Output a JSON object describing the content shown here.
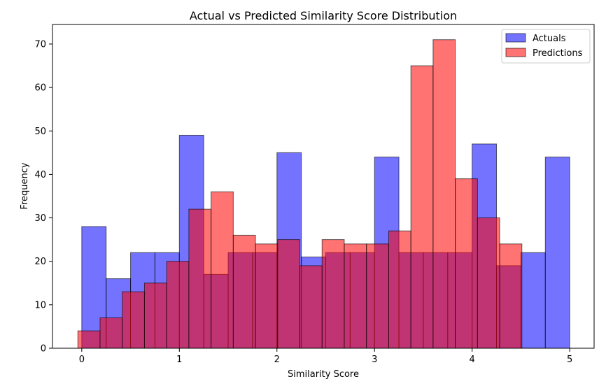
{
  "chart_data": {
    "type": "bar",
    "title": "Actual vs Predicted Similarity Score Distribution",
    "xlabel": "Similarity Score",
    "ylabel": "Frequency",
    "xlim": [
      -0.3,
      5.25
    ],
    "ylim": [
      0,
      74.5
    ],
    "xticks": [
      0,
      1,
      2,
      3,
      4,
      5
    ],
    "yticks": [
      0,
      10,
      20,
      30,
      40,
      50,
      60,
      70
    ],
    "grid": false,
    "legend_position": "top-right",
    "colors": {
      "actuals": "#0000ff",
      "predictions": "#ff0000",
      "edge": "#000000"
    },
    "series": [
      {
        "name": "Actuals",
        "bin_start": 0.0,
        "bin_width": 0.25,
        "values": [
          28,
          16,
          22,
          22,
          49,
          17,
          22,
          22,
          45,
          21,
          22,
          22,
          44,
          22,
          22,
          22,
          47,
          19,
          22,
          44
        ]
      },
      {
        "name": "Predictions",
        "bin_start": -0.04,
        "bin_width": 0.2275,
        "values": [
          4,
          7,
          13,
          15,
          20,
          32,
          36,
          26,
          24,
          25,
          19,
          25,
          24,
          24,
          27,
          65,
          71,
          39,
          30,
          24
        ]
      }
    ]
  }
}
